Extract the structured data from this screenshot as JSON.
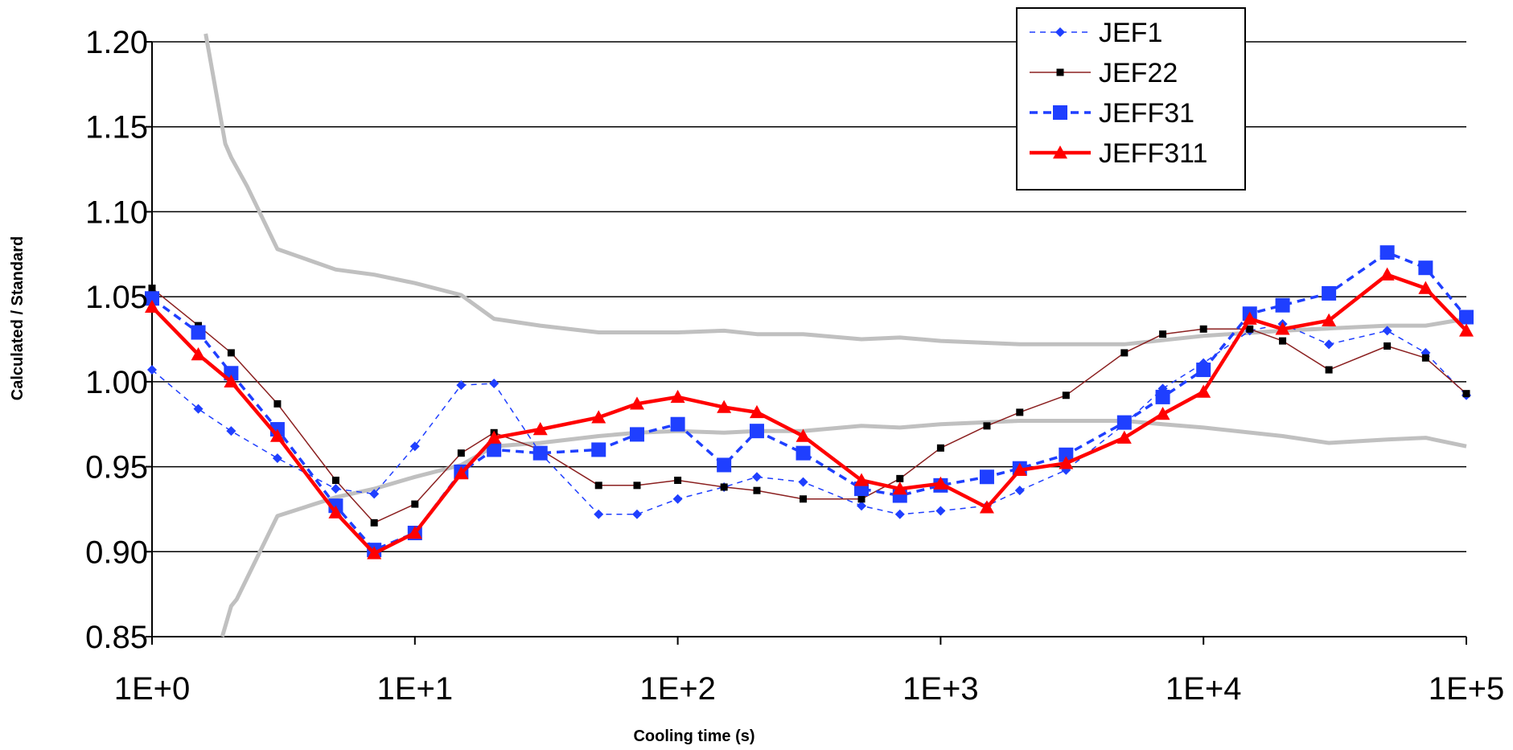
{
  "chart_data": {
    "type": "line",
    "title": "",
    "xlabel": "Cooling time (s)",
    "ylabel": "Calculated / Standard",
    "x_scale": "log",
    "xlim": [
      1,
      100000
    ],
    "ylim": [
      0.85,
      1.2
    ],
    "x_ticks": [
      {
        "value": 1,
        "label": "1E+0"
      },
      {
        "value": 10,
        "label": "1E+1"
      },
      {
        "value": 100,
        "label": "1E+2"
      },
      {
        "value": 1000,
        "label": "1E+3"
      },
      {
        "value": 10000,
        "label": "1E+4"
      },
      {
        "value": 100000,
        "label": "1E+5"
      }
    ],
    "y_ticks": [
      {
        "value": 0.85,
        "label": "0.85"
      },
      {
        "value": 0.9,
        "label": "0.90"
      },
      {
        "value": 0.95,
        "label": "0.95"
      },
      {
        "value": 1.0,
        "label": "1.00"
      },
      {
        "value": 1.05,
        "label": "1.05"
      },
      {
        "value": 1.1,
        "label": "1.10"
      },
      {
        "value": 1.15,
        "label": "1.15"
      },
      {
        "value": 1.2,
        "label": "1.20"
      }
    ],
    "grid": "horizontal",
    "legend_position": "top-right",
    "x": [
      1,
      1.5,
      2,
      3,
      5,
      7,
      10,
      15,
      20,
      30,
      50,
      70,
      100,
      150,
      200,
      300,
      500,
      700,
      1000,
      1500,
      2000,
      3000,
      5000,
      7000,
      10000,
      15000,
      20000,
      30000,
      50000,
      70000,
      100000
    ],
    "series": [
      {
        "name": "JEF1",
        "color": "#1f3fff",
        "style": "dashed-thin",
        "marker": "diamond",
        "values": [
          1.007,
          0.984,
          0.971,
          0.955,
          0.937,
          0.934,
          0.962,
          0.998,
          0.999,
          0.958,
          0.922,
          0.922,
          0.931,
          0.938,
          0.944,
          0.941,
          0.927,
          0.922,
          0.924,
          0.927,
          0.936,
          0.948,
          0.975,
          0.996,
          1.011,
          1.03,
          1.034,
          1.022,
          1.03,
          1.017,
          0.992
        ]
      },
      {
        "name": "JEF22",
        "color": "#8b2020",
        "style": "solid-thin",
        "marker": "square-small",
        "values": [
          1.055,
          1.033,
          1.017,
          0.987,
          0.942,
          0.917,
          0.928,
          0.958,
          0.97,
          0.96,
          0.939,
          0.939,
          0.942,
          0.938,
          0.936,
          0.931,
          0.931,
          0.943,
          0.961,
          0.974,
          0.982,
          0.992,
          1.017,
          1.028,
          1.031,
          1.031,
          1.024,
          1.007,
          1.021,
          1.014,
          0.993
        ]
      },
      {
        "name": "JEFF31",
        "color": "#1f3fff",
        "style": "dashed-thick",
        "marker": "square",
        "values": [
          1.049,
          1.029,
          1.005,
          0.972,
          0.927,
          0.901,
          0.911,
          0.947,
          0.96,
          0.958,
          0.96,
          0.969,
          0.975,
          0.951,
          0.971,
          0.958,
          0.937,
          0.933,
          0.939,
          0.944,
          0.949,
          0.957,
          0.976,
          0.991,
          1.007,
          1.04,
          1.045,
          1.052,
          1.076,
          1.067,
          1.038
        ]
      },
      {
        "name": "JEFF311",
        "color": "#ff0000",
        "style": "solid-thick",
        "marker": "triangle",
        "values": [
          1.044,
          1.016,
          1.0,
          0.968,
          0.923,
          0.899,
          0.911,
          0.946,
          0.967,
          0.972,
          0.979,
          0.987,
          0.991,
          0.985,
          0.982,
          0.968,
          0.942,
          0.937,
          0.94,
          0.926,
          0.948,
          0.952,
          0.967,
          0.981,
          0.994,
          1.037,
          1.031,
          1.036,
          1.063,
          1.055,
          1.03
        ]
      }
    ],
    "bands": [
      {
        "color": "#c0c0c0",
        "x": [
          1.6,
          1.9,
          2.0,
          2.3,
          3.0,
          5.0,
          7.0,
          10,
          15,
          20,
          30,
          50,
          70,
          100,
          150,
          200,
          300,
          500,
          700,
          1000,
          2000,
          5000,
          10000,
          20000,
          50000,
          70000,
          100000
        ],
        "values": [
          1.205,
          1.14,
          1.132,
          1.115,
          1.078,
          1.066,
          1.063,
          1.058,
          1.051,
          1.037,
          1.033,
          1.029,
          1.029,
          1.029,
          1.03,
          1.028,
          1.028,
          1.025,
          1.026,
          1.024,
          1.022,
          1.022,
          1.027,
          1.03,
          1.033,
          1.033,
          1.037
        ]
      },
      {
        "color": "#c0c0c0",
        "x": [
          1.85,
          2.0,
          2.1,
          3.0,
          5.0,
          7.0,
          10,
          15,
          20,
          30,
          50,
          70,
          100,
          150,
          200,
          300,
          500,
          700,
          1000,
          2000,
          5000,
          7000,
          10000,
          20000,
          30000,
          50000,
          70000,
          100000
        ],
        "values": [
          0.848,
          0.868,
          0.872,
          0.921,
          0.932,
          0.937,
          0.944,
          0.951,
          0.962,
          0.964,
          0.968,
          0.97,
          0.971,
          0.97,
          0.971,
          0.971,
          0.974,
          0.973,
          0.975,
          0.977,
          0.977,
          0.975,
          0.973,
          0.968,
          0.964,
          0.966,
          0.967,
          0.962
        ]
      }
    ]
  }
}
